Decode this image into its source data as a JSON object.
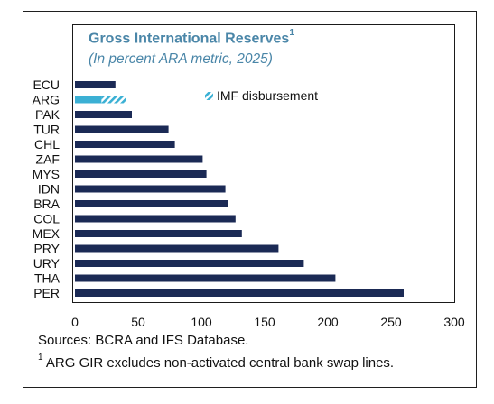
{
  "title": "Gross International Reserves",
  "title_sup": "1",
  "subtitle": "(In percent ARA metric, 2025)",
  "chart_data": {
    "type": "bar",
    "orientation": "horizontal",
    "categories": [
      "ECU",
      "ARG",
      "PAK",
      "TUR",
      "CHL",
      "ZAF",
      "MYS",
      "IDN",
      "BRA",
      "COL",
      "MEX",
      "PRY",
      "URY",
      "THA",
      "PER"
    ],
    "values": [
      32,
      21,
      45,
      74,
      79,
      101,
      104,
      119,
      121,
      127,
      132,
      161,
      181,
      206,
      260
    ],
    "stacked_extra": {
      "name": "IMF disbursement",
      "category": "ARG",
      "value": 19
    },
    "legend": {
      "label": "IMF disbursement",
      "placement": "top-center"
    },
    "xlim": [
      0,
      300
    ],
    "xticks": [
      0,
      50,
      100,
      150,
      200,
      250,
      300
    ],
    "colors": {
      "bar": "#1b2a55",
      "arg": "#3bb0d4",
      "hatch": "#3bb0d4"
    },
    "grid": false
  },
  "sources": "Sources: BCRA and IFS Database.",
  "footnote_sup": "1",
  "footnote": "ARG GIR excludes non-activated central bank swap lines."
}
